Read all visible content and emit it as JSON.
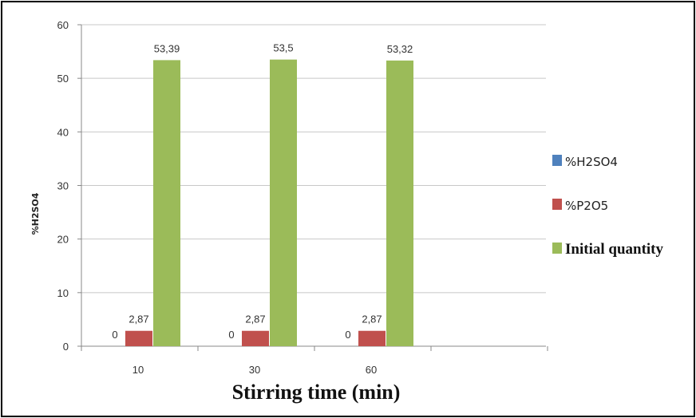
{
  "chart_data": {
    "type": "bar",
    "categories": [
      "10",
      "30",
      "60"
    ],
    "series": [
      {
        "name": "%H2SO4",
        "values": [
          0,
          0,
          0
        ],
        "labels": [
          "0",
          "0",
          "0"
        ],
        "color": "#4f81bd"
      },
      {
        "name": "%P2O5",
        "values": [
          2.87,
          2.87,
          2.87
        ],
        "labels": [
          "2,87",
          "2,87",
          "2,87"
        ],
        "color": "#c0504d"
      },
      {
        "name": "Initial quantity",
        "values": [
          53.39,
          53.5,
          53.32
        ],
        "labels": [
          "53,39",
          "53,5",
          "53,32"
        ],
        "color": "#9bbb59"
      }
    ],
    "xlabel": "Stirring time (min)",
    "ylabel": "%H2SO4",
    "ylim": [
      0,
      60
    ],
    "yticks": [
      0,
      10,
      20,
      30,
      40,
      50,
      60
    ],
    "grid": true,
    "legend": "right"
  }
}
